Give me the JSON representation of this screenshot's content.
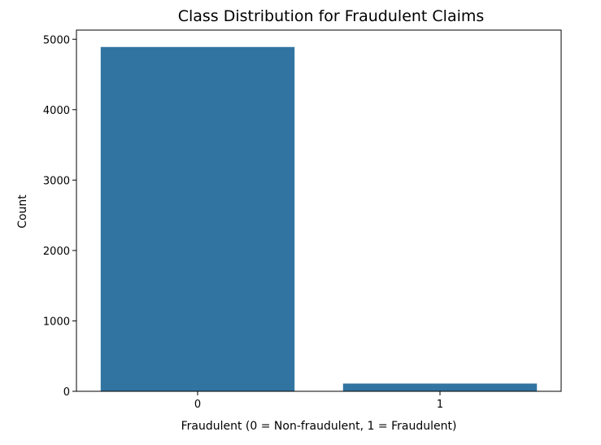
{
  "chart_data": {
    "type": "bar",
    "title": "Class Distribution for Fraudulent Claims",
    "xlabel": "Fraudulent (0 = Non-fraudulent, 1 = Fraudulent)",
    "ylabel": "Count",
    "categories": [
      "0",
      "1"
    ],
    "values": [
      4890,
      110
    ],
    "ylim": [
      0,
      5130
    ],
    "yticks": [
      0,
      1000,
      2000,
      3000,
      4000,
      5000
    ],
    "grid": false,
    "legend": "none",
    "bar_color": "#3274a1"
  }
}
